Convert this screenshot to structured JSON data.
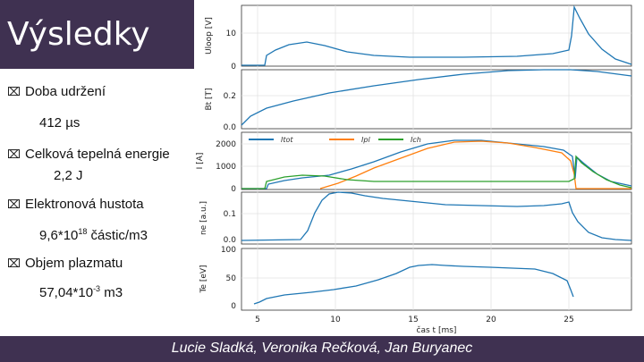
{
  "slide": {
    "title": "Výsledky",
    "footer": "Lucie Sladká, Veronika Rečková, Jan Buryanec"
  },
  "bullets": [
    {
      "icon": "bullet-icon",
      "label": "Doba udržení",
      "value_pre": "412 µs",
      "value_exp": "",
      "value_post": ""
    },
    {
      "icon": "bullet-icon",
      "label": "Celková tepelná energie",
      "value_pre": "2,2 J",
      "value_exp": "",
      "value_post": ""
    },
    {
      "icon": "bullet-icon",
      "label": "Elektronová hustota",
      "value_pre": "9,6*10",
      "value_exp": "18",
      "value_post": " částic/m3"
    },
    {
      "icon": "bullet-icon",
      "label": "Objem plazmatu",
      "value_pre": "57,04*10",
      "value_exp": "-3",
      "value_post": " m3"
    }
  ],
  "plots": {
    "xlabel": "čas t [ms]",
    "xticks": [
      "5",
      "10",
      "15",
      "20",
      "25"
    ],
    "panels": [
      {
        "ylabel": "Uloop [V]",
        "yticks": [
          "0",
          "10"
        ]
      },
      {
        "ylabel": "Bt [T]",
        "yticks": [
          "0.0",
          "0.2"
        ]
      },
      {
        "ylabel": "I [A]",
        "yticks": [
          "0",
          "1000",
          "2000"
        ]
      },
      {
        "ylabel": "ne [a.u.]",
        "yticks": [
          "0.0",
          "0.1"
        ]
      },
      {
        "ylabel": "Te [eV]",
        "yticks": [
          "0",
          "50",
          "100"
        ]
      }
    ],
    "legend": [
      "Itot",
      "Ipl",
      "Ich"
    ],
    "colors": {
      "blue": "#1f77b4",
      "orange": "#ff7f0e",
      "green": "#2ca02c"
    }
  }
}
